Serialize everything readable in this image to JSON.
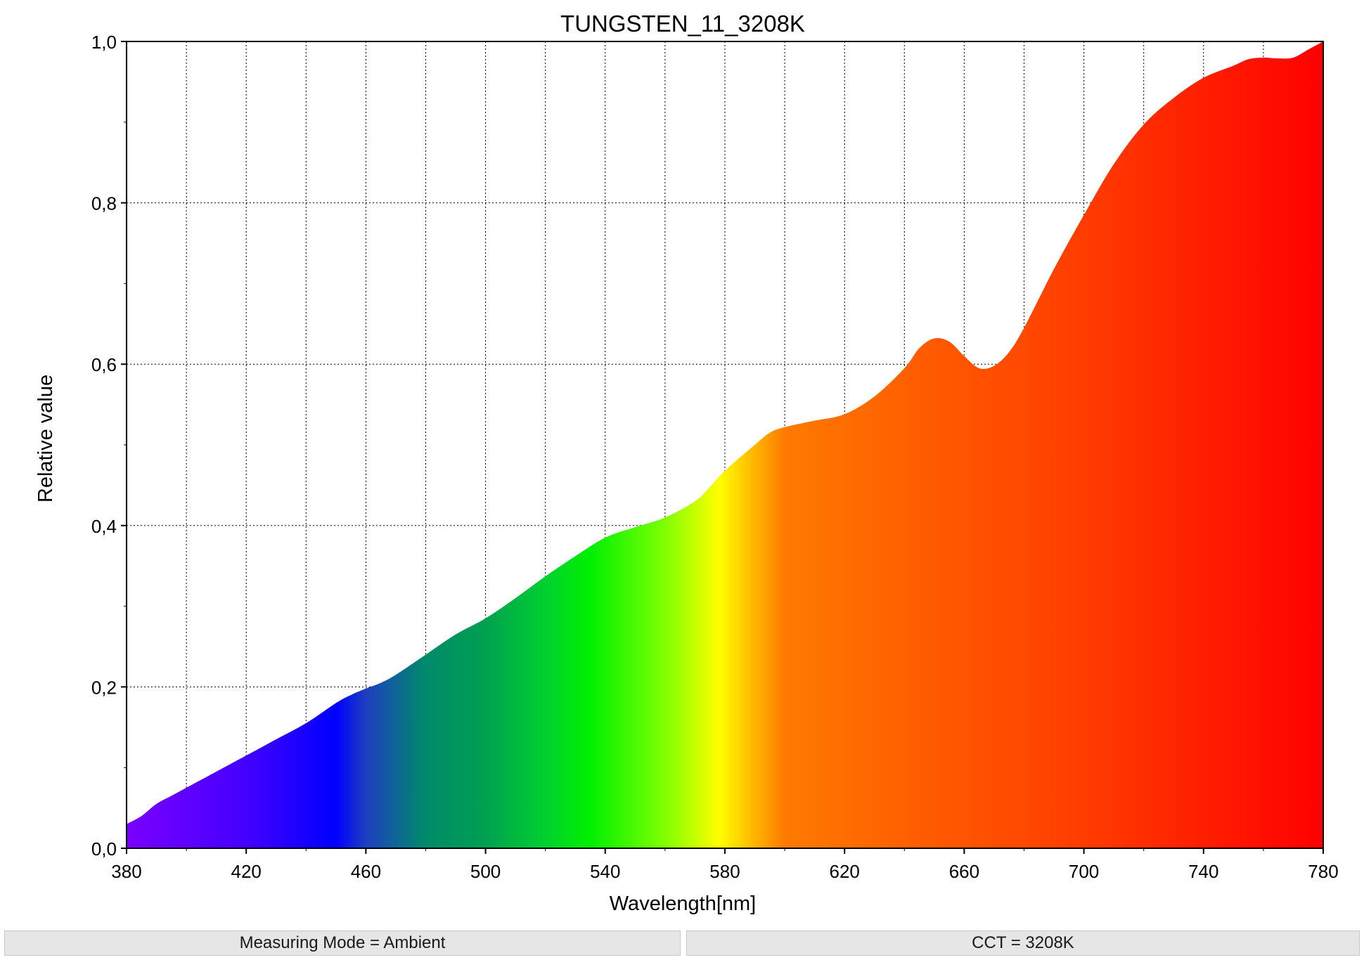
{
  "chart_data": {
    "type": "area",
    "title": "TUNGSTEN_11_3208K",
    "xlabel": "Wavelength[nm]",
    "ylabel": "Relative value",
    "xlim": [
      380,
      780
    ],
    "ylim": [
      0,
      1.0
    ],
    "x_ticks": [
      "380",
      "420",
      "460",
      "500",
      "540",
      "580",
      "620",
      "660",
      "700",
      "740",
      "780"
    ],
    "y_ticks": [
      "0,0",
      "0,2",
      "0,4",
      "0,6",
      "0,8",
      "1,0"
    ],
    "x_tick_values": [
      380,
      420,
      460,
      500,
      540,
      580,
      620,
      660,
      700,
      740,
      780
    ],
    "y_tick_values": [
      0,
      0.2,
      0.4,
      0.6,
      0.8,
      1.0
    ],
    "x_minor_step": 20,
    "grid": true,
    "legend": "none",
    "series": [
      {
        "x": [
          380,
          385,
          390,
          395,
          400,
          405,
          410,
          420,
          430,
          440,
          450,
          455,
          460,
          465,
          470,
          480,
          490,
          500,
          510,
          520,
          530,
          540,
          550,
          560,
          570,
          575,
          580,
          590,
          595,
          600,
          610,
          620,
          630,
          640,
          645,
          650,
          655,
          660,
          665,
          670,
          675,
          680,
          690,
          700,
          710,
          720,
          730,
          740,
          750,
          755,
          760,
          765,
          770,
          775,
          780
        ],
        "y": [
          0.03,
          0.04,
          0.055,
          0.065,
          0.075,
          0.085,
          0.095,
          0.115,
          0.135,
          0.155,
          0.18,
          0.19,
          0.198,
          0.205,
          0.215,
          0.24,
          0.265,
          0.285,
          0.31,
          0.337,
          0.362,
          0.385,
          0.398,
          0.41,
          0.43,
          0.448,
          0.468,
          0.5,
          0.515,
          0.522,
          0.53,
          0.538,
          0.56,
          0.595,
          0.62,
          0.632,
          0.628,
          0.61,
          0.595,
          0.598,
          0.615,
          0.645,
          0.718,
          0.785,
          0.848,
          0.897,
          0.93,
          0.955,
          0.97,
          0.978,
          0.98,
          0.979,
          0.98,
          0.99,
          1.0
        ]
      }
    ],
    "fill_gradient": [
      {
        "nm": 380,
        "color": "#7a00ff"
      },
      {
        "nm": 420,
        "color": "#4400ff"
      },
      {
        "nm": 450,
        "color": "#0000ff"
      },
      {
        "nm": 460,
        "color": "#1e3fc0"
      },
      {
        "nm": 480,
        "color": "#008a6a"
      },
      {
        "nm": 500,
        "color": "#00a050"
      },
      {
        "nm": 520,
        "color": "#00d030"
      },
      {
        "nm": 535,
        "color": "#00f000"
      },
      {
        "nm": 560,
        "color": "#80ff00"
      },
      {
        "nm": 578,
        "color": "#ffff00"
      },
      {
        "nm": 590,
        "color": "#ffb400"
      },
      {
        "nm": 600,
        "color": "#ff7a00"
      },
      {
        "nm": 640,
        "color": "#ff6000"
      },
      {
        "nm": 700,
        "color": "#ff3c00"
      },
      {
        "nm": 780,
        "color": "#ff0000"
      }
    ]
  },
  "status": {
    "left": "Measuring Mode = Ambient",
    "right": "CCT = 3208K"
  }
}
